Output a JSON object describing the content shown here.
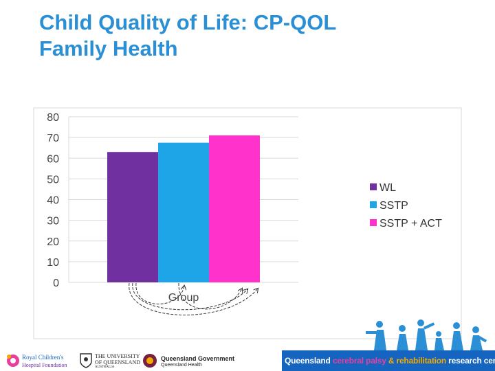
{
  "slide": {
    "title_line1": "Child Quality of Life: CP-QOL",
    "title_line2": "Family Health"
  },
  "chart_data": {
    "type": "bar",
    "title": "",
    "xlabel": "Group",
    "ylabel": "",
    "ylim": [
      0,
      80
    ],
    "yticks": [
      0,
      10,
      20,
      30,
      40,
      50,
      60,
      70,
      80
    ],
    "grid": true,
    "legend_position": "right",
    "categories": [
      "Group"
    ],
    "series": [
      {
        "name": "WL",
        "values": [
          63
        ],
        "color": "#7030a0"
      },
      {
        "name": "SSTP",
        "values": [
          67.5
        ],
        "color": "#1ea5e8"
      },
      {
        "name": "SSTP + ACT",
        "values": [
          71
        ],
        "color": "#ff33cc"
      }
    ],
    "annotations": [
      "dashed comparison arrows between WL, SSTP and SSTP + ACT"
    ]
  },
  "footer": {
    "logo_rc": {
      "line1": "Royal Children's",
      "line2": "Hospital Foundation"
    },
    "logo_uq": {
      "line1": "THE UNIVERSITY",
      "line2": "OF QUEENSLAND",
      "line3": "AUSTRALIA"
    },
    "logo_qg": {
      "line1": "Queensland Government",
      "line2": "Queensland Health"
    },
    "tagline": {
      "part1": "Queensland ",
      "part2": "cerebral palsy ",
      "part3": "& rehabilitation ",
      "part4": "research centre"
    },
    "colors": {
      "bar": "#1565c0",
      "pink": "#e83e9e",
      "orange": "#f2a900"
    }
  }
}
